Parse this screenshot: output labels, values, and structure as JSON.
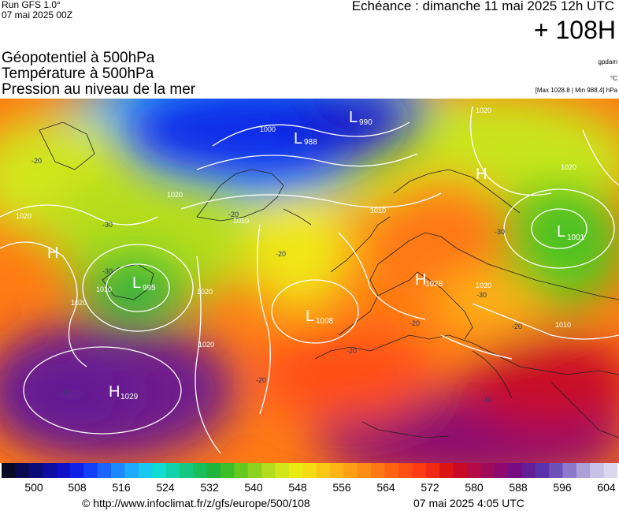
{
  "header": {
    "run": "Run GFS 1.0°",
    "run_date": "07 mai 2025 00Z",
    "echeance": "Echéance : dimanche 11 mai 2025 12h UTC",
    "lead": "+ 108H",
    "layers": [
      "Géopotentiel à 500hPa",
      "Température à 500hPa",
      "Pression au niveau de la mer"
    ],
    "unit_gpdam": "gpdam",
    "unit_temp": "°C",
    "maxmin": "[Max 1028.8 | Min 988.4] hPa"
  },
  "map": {
    "pressure_centers": [
      {
        "type": "L",
        "value": "990"
      },
      {
        "type": "L",
        "value": "988"
      },
      {
        "type": "L",
        "value": "995"
      },
      {
        "type": "L",
        "value": "1008"
      },
      {
        "type": "L",
        "value": "1001"
      },
      {
        "type": "H",
        "value": "1029"
      },
      {
        "type": "H",
        "value": ""
      },
      {
        "type": "H",
        "value": ""
      },
      {
        "type": "H",
        "value": "1028"
      }
    ],
    "isobar_labels": [
      "1020",
      "1020",
      "1010",
      "1000",
      "1010",
      "1020",
      "1020",
      "1020",
      "1010",
      "1020",
      "1020",
      "1020",
      "1010"
    ],
    "temp_labels": [
      "-20",
      "-30",
      "-30",
      "-20",
      "-20",
      "-20",
      "-20",
      "-20",
      "-30",
      "-30",
      "-20",
      "-10",
      "-10"
    ]
  },
  "colorbar": {
    "ticks": [
      "500",
      "508",
      "516",
      "524",
      "532",
      "540",
      "548",
      "556",
      "564",
      "572",
      "580",
      "588",
      "596",
      "604"
    ],
    "colors": [
      "#0a0a28",
      "#0a0a50",
      "#0c0c78",
      "#0e0ea0",
      "#1010c8",
      "#1020e6",
      "#1240f8",
      "#1a64ff",
      "#1e88ff",
      "#1eaaff",
      "#18c8f0",
      "#10dcd2",
      "#10d2a8",
      "#14c882",
      "#18be5a",
      "#20b43c",
      "#3cbe28",
      "#64c81e",
      "#8cd21e",
      "#b4dc1e",
      "#d2e61e",
      "#ebeb14",
      "#f5dc14",
      "#fac814",
      "#ffb414",
      "#ffa014",
      "#ff8c14",
      "#ff7814",
      "#ff6414",
      "#ff5014",
      "#ff3c14",
      "#f02814",
      "#dc1414",
      "#c80a28",
      "#b40a46",
      "#a00a5a",
      "#8c0a6e",
      "#780a82",
      "#641e96",
      "#5a32aa",
      "#6e50b9",
      "#8c78c8",
      "#aaa0d7",
      "#c8c3e6",
      "#dcd7f0"
    ]
  },
  "footer": {
    "copyright": "© http://www.infoclimat.fr/z/gfs/europe/500/108",
    "gen_date": "07 mai 2025  4:05 UTC"
  }
}
